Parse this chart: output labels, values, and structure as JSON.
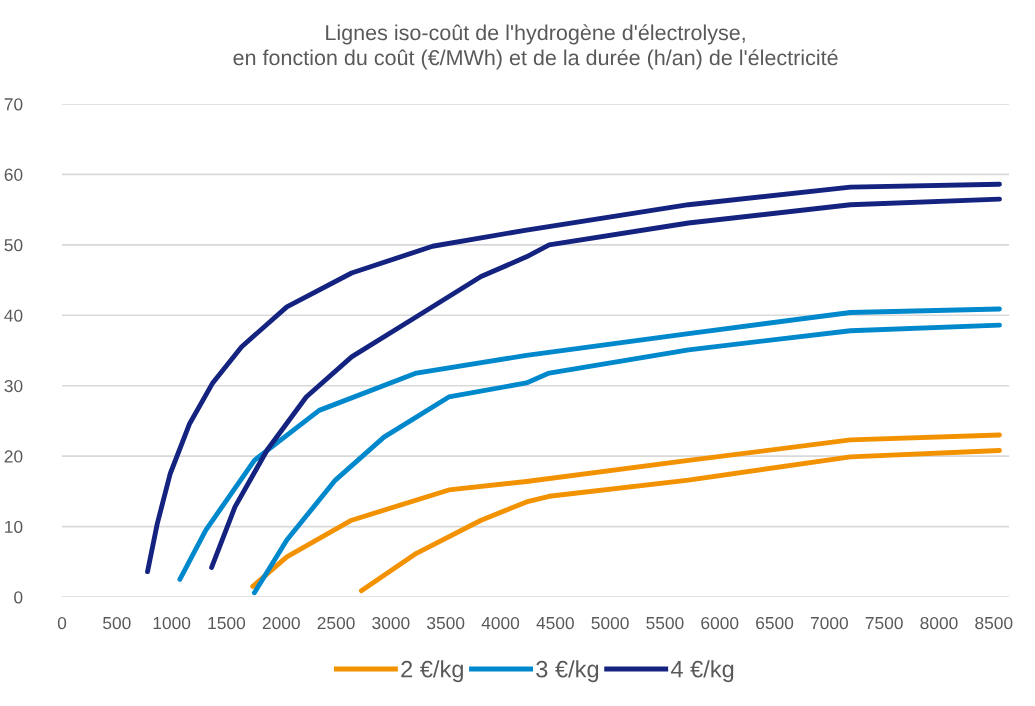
{
  "chart_data": {
    "type": "line",
    "title": "Lignes iso-coût de l'hydrogène d'électrolyse,\nen fonction du coût (€/MWh) et de la durée (h/an) de l'électricité",
    "series": [
      {
        "name": "2 €/kg",
        "color": "#f39200",
        "x": [
          1740,
          2051,
          2642,
          3529,
          4237,
          5715,
          7192,
          8552
        ],
        "values": [
          1.5,
          5.7,
          10.9,
          15.2,
          16.4,
          19.4,
          22.3,
          23.0
        ]
      },
      {
        "color": "#f39200",
        "x": [
          2731,
          3233,
          3823,
          4237,
          4444,
          5715,
          7192,
          8552
        ],
        "values": [
          0.9,
          6.2,
          10.9,
          13.5,
          14.3,
          16.6,
          19.9,
          20.8
        ]
      },
      {
        "name": "3 €/kg",
        "color": "#0088cc",
        "x": [
          1075,
          1312,
          1755,
          2346,
          3233,
          4237,
          5715,
          7192,
          8552
        ],
        "values": [
          2.5,
          9.5,
          19.4,
          26.5,
          31.8,
          34.3,
          37.4,
          40.4,
          40.9
        ]
      },
      {
        "color": "#0088cc",
        "x": [
          1755,
          2051,
          2494,
          2937,
          3529,
          4237,
          4444,
          5715,
          7192,
          8552
        ],
        "values": [
          0.6,
          8.1,
          16.6,
          22.7,
          28.4,
          30.4,
          31.8,
          35.1,
          37.8,
          38.6
        ]
      },
      {
        "name": "4 €/kg",
        "color": "#14237f",
        "x": [
          780,
          869,
          987,
          1164,
          1371,
          1637,
          2051,
          2642,
          3380,
          4237,
          5715,
          7192,
          8552
        ],
        "values": [
          3.6,
          10.4,
          17.5,
          24.6,
          30.3,
          35.5,
          41.2,
          46.0,
          49.8,
          52.1,
          55.7,
          58.2,
          58.6
        ]
      },
      {
        "color": "#14237f",
        "x": [
          1365,
          1578,
          1873,
          2228,
          2642,
          3233,
          3823,
          4237,
          4444,
          5715,
          7192,
          8552
        ],
        "values": [
          4.2,
          12.8,
          20.9,
          28.4,
          34.1,
          39.8,
          45.5,
          48.3,
          50.0,
          53.1,
          55.7,
          56.5
        ]
      }
    ],
    "xlim": [
      0,
      8640
    ],
    "xticks": [
      0,
      500,
      1000,
      1500,
      2000,
      2500,
      3000,
      3500,
      4000,
      4500,
      5000,
      5500,
      6000,
      6500,
      7000,
      7500,
      8000,
      8500
    ],
    "ylim": [
      0,
      70
    ],
    "yticks": [
      0,
      10,
      20,
      30,
      40,
      50,
      60,
      70
    ],
    "grid": "y",
    "legend": "bottom"
  }
}
